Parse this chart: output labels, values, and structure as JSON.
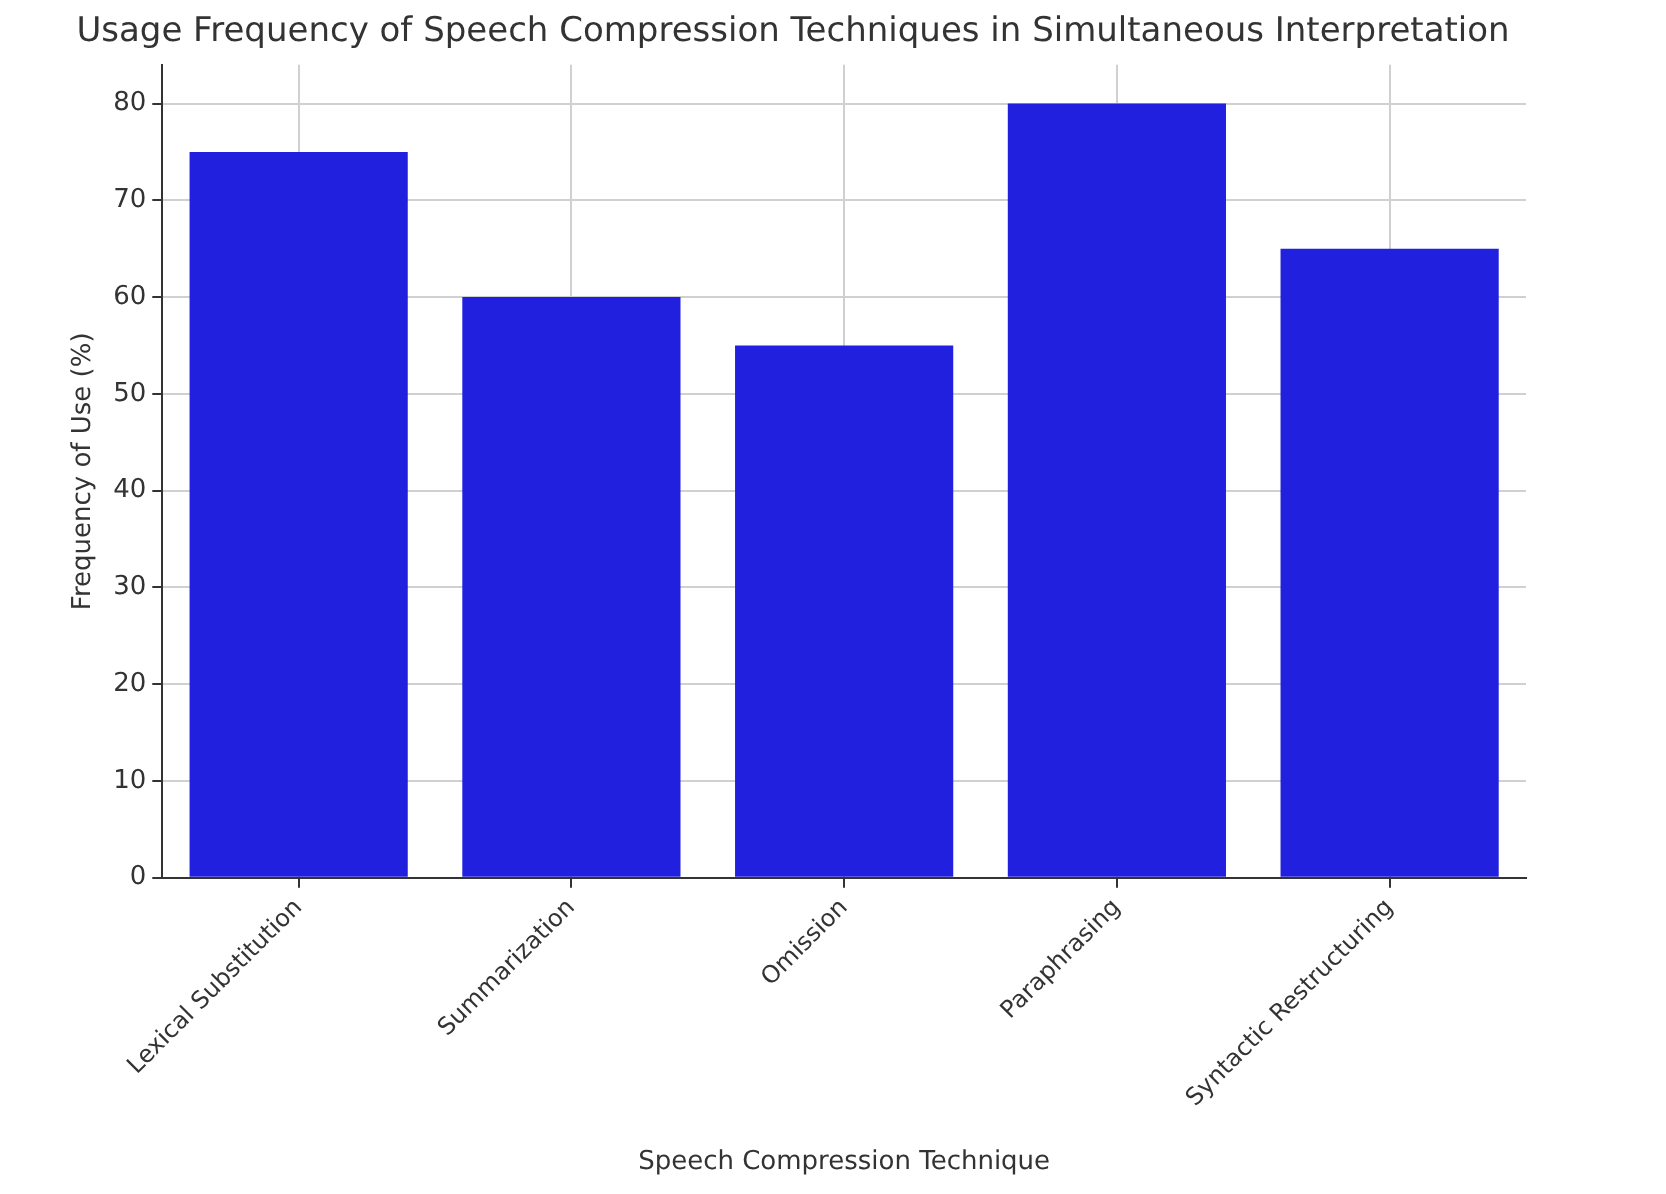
{
  "chart_data": {
    "type": "bar",
    "title": "Usage Frequency of Speech Compression Techniques in Simultaneous Interpretation",
    "xlabel": "Speech Compression Technique",
    "ylabel": "Frequency of Use (%)",
    "categories": [
      "Lexical Substitution",
      "Summarization",
      "Omission",
      "Paraphrasing",
      "Syntactic Restructuring"
    ],
    "values": [
      75,
      60,
      55,
      80,
      65
    ],
    "color": "#2020de",
    "ylim": [
      0,
      84
    ],
    "yticks": [
      0,
      10,
      20,
      30,
      40,
      50,
      60,
      70,
      80
    ],
    "grid": true
  }
}
